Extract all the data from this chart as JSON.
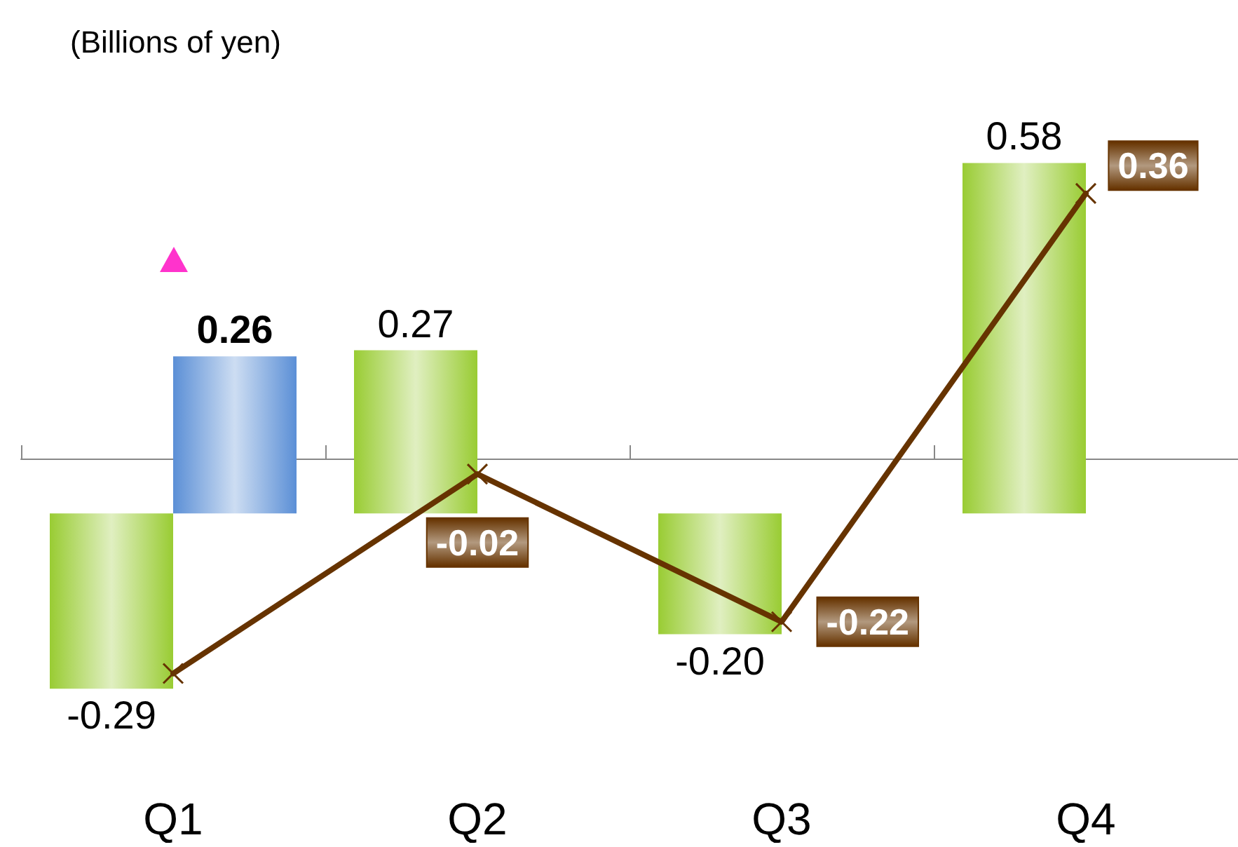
{
  "chart_data": {
    "type": "bar",
    "ylabel": "(Billions of yen)",
    "categories": [
      "Q1",
      "Q2",
      "Q3",
      "Q4"
    ],
    "marker": "cross",
    "line_style": "solid",
    "series": [
      {
        "color": "#99cc33",
        "values": [
          -0.29,
          0.27,
          -0.2,
          0.58
        ],
        "value_labels": [
          "-0.29",
          "0.27",
          "-0.20",
          "0.58"
        ]
      },
      {
        "color": "#5b8fd6",
        "values": [
          0.26,
          null,
          null,
          null
        ],
        "value_labels": [
          "0.26",
          null,
          null,
          null
        ]
      },
      {
        "type": "line",
        "axis": "y2",
        "color": "#663300",
        "values": [
          -0.29,
          -0.02,
          -0.22,
          0.36
        ],
        "value_labels": [
          null,
          "-0.02",
          "-0.22",
          "0.36"
        ]
      }
    ]
  }
}
